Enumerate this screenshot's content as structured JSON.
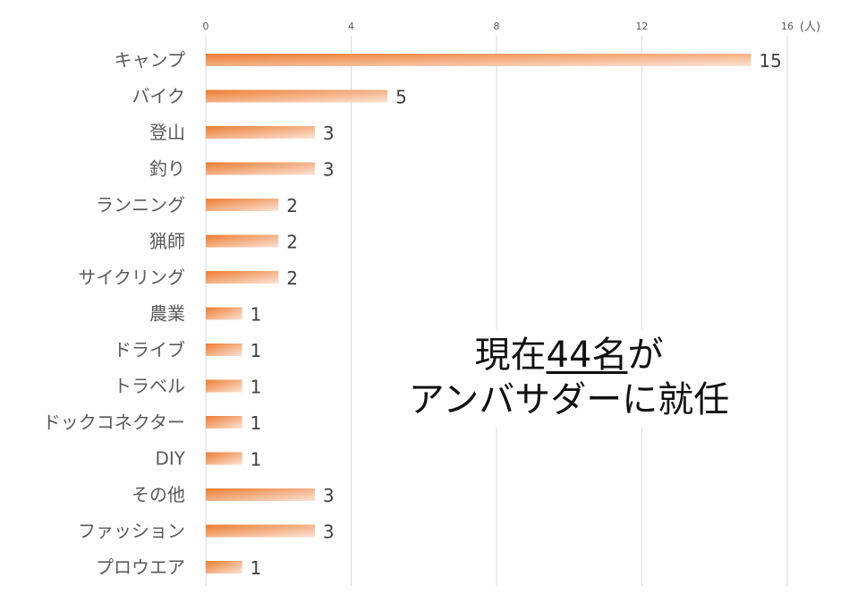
{
  "chart_data": {
    "type": "bar",
    "orientation": "horizontal",
    "categories": [
      "キャンプ",
      "バイク",
      "登山",
      "釣り",
      "ランニング",
      "猟師",
      "サイクリング",
      "農業",
      "ドライブ",
      "トラベル",
      "ドックコネクター",
      "DIY",
      "その他",
      "ファッション",
      "プロウエア"
    ],
    "values": [
      15,
      5,
      3,
      3,
      2,
      2,
      2,
      1,
      1,
      1,
      1,
      1,
      3,
      3,
      1
    ],
    "xlim": [
      0,
      16
    ],
    "x_ticks": [
      0,
      4,
      8,
      12,
      16
    ],
    "unit_label": "(人)",
    "grid": true,
    "legend": "none",
    "colors": {
      "bar_dark": "#ED7D31",
      "bar_light": "#FBE3D6",
      "grid": "#D9D9D9",
      "label_text": "#595959",
      "value_text": "#404040",
      "tick_text": "#595959"
    }
  },
  "annotation": {
    "line1_prefix": "現在",
    "line1_number": "44名",
    "line1_suffix": "が",
    "line2": "アンバサダーに就任"
  }
}
